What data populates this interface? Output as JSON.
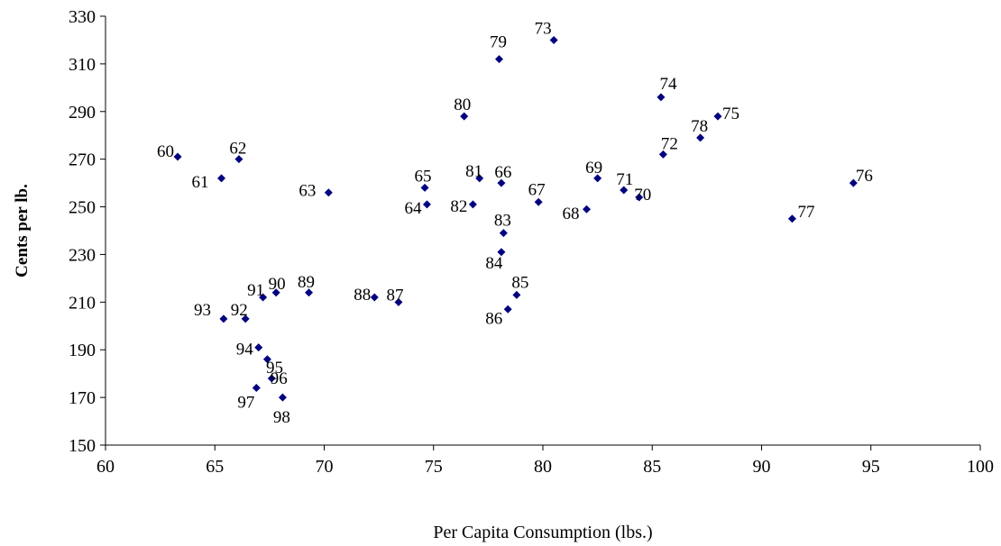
{
  "chart_data": {
    "type": "scatter",
    "title": "",
    "xlabel": "Per Capita Consumption (lbs.)",
    "ylabel": "Cents per lb.",
    "xlim": [
      60,
      100
    ],
    "ylim": [
      150,
      330
    ],
    "x_ticks": [
      60,
      65,
      70,
      75,
      80,
      85,
      90,
      95,
      100
    ],
    "y_ticks": [
      150,
      170,
      190,
      210,
      230,
      250,
      270,
      290,
      310,
      330
    ],
    "grid": false,
    "legend": "none",
    "marker_color": "#00007f",
    "points": [
      {
        "label": "60",
        "x": 63.3,
        "y": 271
      },
      {
        "label": "61",
        "x": 65.3,
        "y": 262
      },
      {
        "label": "62",
        "x": 66.1,
        "y": 270
      },
      {
        "label": "63",
        "x": 70.2,
        "y": 256
      },
      {
        "label": "64",
        "x": 74.7,
        "y": 251
      },
      {
        "label": "65",
        "x": 74.6,
        "y": 258
      },
      {
        "label": "66",
        "x": 78.1,
        "y": 260
      },
      {
        "label": "67",
        "x": 79.8,
        "y": 252
      },
      {
        "label": "68",
        "x": 82.0,
        "y": 249
      },
      {
        "label": "69",
        "x": 82.5,
        "y": 262
      },
      {
        "label": "70",
        "x": 84.4,
        "y": 254
      },
      {
        "label": "71",
        "x": 83.7,
        "y": 257
      },
      {
        "label": "72",
        "x": 85.5,
        "y": 272
      },
      {
        "label": "73",
        "x": 80.5,
        "y": 320
      },
      {
        "label": "74",
        "x": 85.4,
        "y": 296
      },
      {
        "label": "75",
        "x": 88.0,
        "y": 288
      },
      {
        "label": "76",
        "x": 94.2,
        "y": 260
      },
      {
        "label": "77",
        "x": 91.4,
        "y": 245
      },
      {
        "label": "78",
        "x": 87.2,
        "y": 279
      },
      {
        "label": "79",
        "x": 78.0,
        "y": 312
      },
      {
        "label": "80",
        "x": 76.4,
        "y": 288
      },
      {
        "label": "81",
        "x": 77.1,
        "y": 262
      },
      {
        "label": "82",
        "x": 76.8,
        "y": 251
      },
      {
        "label": "83",
        "x": 78.2,
        "y": 239
      },
      {
        "label": "84",
        "x": 78.1,
        "y": 231
      },
      {
        "label": "85",
        "x": 78.8,
        "y": 213
      },
      {
        "label": "86",
        "x": 78.4,
        "y": 207
      },
      {
        "label": "87",
        "x": 73.4,
        "y": 210
      },
      {
        "label": "88",
        "x": 72.3,
        "y": 212
      },
      {
        "label": "89",
        "x": 69.3,
        "y": 214
      },
      {
        "label": "90",
        "x": 67.8,
        "y": 214
      },
      {
        "label": "91",
        "x": 67.2,
        "y": 212
      },
      {
        "label": "92",
        "x": 66.4,
        "y": 203
      },
      {
        "label": "93",
        "x": 65.4,
        "y": 203
      },
      {
        "label": "94",
        "x": 67.0,
        "y": 191
      },
      {
        "label": "95",
        "x": 67.4,
        "y": 186
      },
      {
        "label": "96",
        "x": 67.6,
        "y": 178
      },
      {
        "label": "97",
        "x": 66.9,
        "y": 174
      },
      {
        "label": "98",
        "x": 68.1,
        "y": 170
      }
    ]
  }
}
